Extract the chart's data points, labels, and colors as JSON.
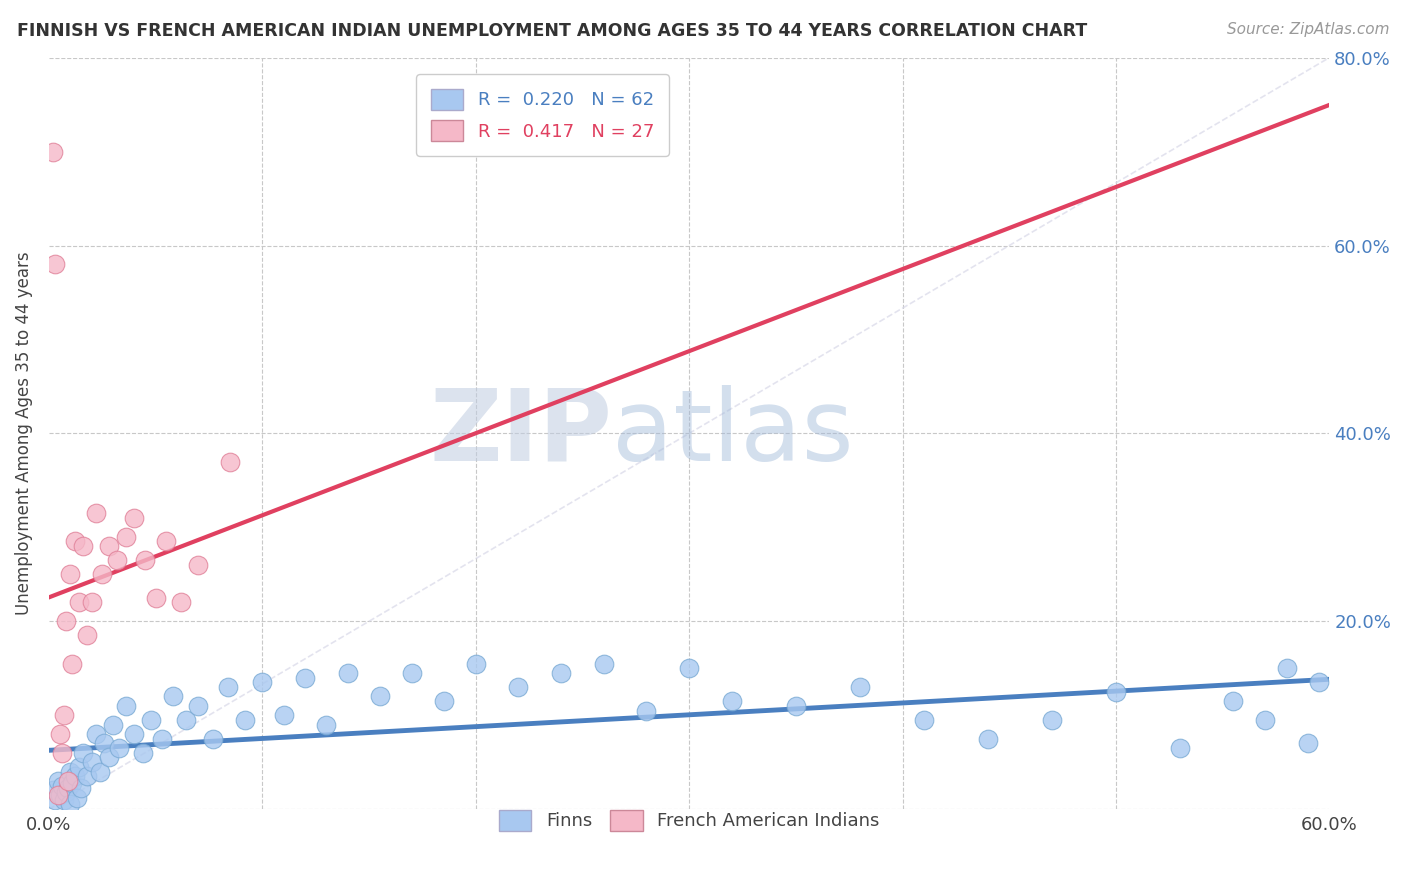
{
  "title": "FINNISH VS FRENCH AMERICAN INDIAN UNEMPLOYMENT AMONG AGES 35 TO 44 YEARS CORRELATION CHART",
  "source": "Source: ZipAtlas.com",
  "ylabel": "Unemployment Among Ages 35 to 44 years",
  "xlim": [
    0.0,
    0.6
  ],
  "ylim": [
    0.0,
    0.8
  ],
  "grid_color": "#c8c8c8",
  "background_color": "#ffffff",
  "finn_color": "#a8c8f0",
  "finn_edge_color": "#7aaad4",
  "french_color": "#f5b8c8",
  "french_edge_color": "#e08098",
  "finn_line_color": "#4a7fc0",
  "french_line_color": "#e04060",
  "finn_reg_dashed_color": "#d0d8f0",
  "french_reg_dashed_color": "#f0c0d0",
  "watermark_zip_color": "#c8d8f0",
  "watermark_atlas_color": "#c0c8e0",
  "legend_R_finn": "0.220",
  "legend_N_finn": "62",
  "legend_R_french": "0.417",
  "legend_N_french": "27",
  "finn_scatter_x": [
    0.002,
    0.003,
    0.004,
    0.005,
    0.006,
    0.007,
    0.008,
    0.009,
    0.01,
    0.01,
    0.011,
    0.012,
    0.013,
    0.014,
    0.015,
    0.016,
    0.018,
    0.02,
    0.022,
    0.024,
    0.026,
    0.028,
    0.03,
    0.033,
    0.036,
    0.04,
    0.044,
    0.048,
    0.053,
    0.058,
    0.064,
    0.07,
    0.077,
    0.084,
    0.092,
    0.1,
    0.11,
    0.12,
    0.13,
    0.14,
    0.155,
    0.17,
    0.185,
    0.2,
    0.22,
    0.24,
    0.26,
    0.28,
    0.3,
    0.32,
    0.35,
    0.38,
    0.41,
    0.44,
    0.47,
    0.5,
    0.53,
    0.555,
    0.57,
    0.58,
    0.59,
    0.595
  ],
  "finn_scatter_y": [
    0.02,
    0.01,
    0.03,
    0.015,
    0.025,
    0.01,
    0.018,
    0.022,
    0.04,
    0.005,
    0.028,
    0.035,
    0.012,
    0.045,
    0.022,
    0.06,
    0.035,
    0.05,
    0.08,
    0.04,
    0.07,
    0.055,
    0.09,
    0.065,
    0.11,
    0.08,
    0.06,
    0.095,
    0.075,
    0.12,
    0.095,
    0.11,
    0.075,
    0.13,
    0.095,
    0.135,
    0.1,
    0.14,
    0.09,
    0.145,
    0.12,
    0.145,
    0.115,
    0.155,
    0.13,
    0.145,
    0.155,
    0.105,
    0.15,
    0.115,
    0.11,
    0.13,
    0.095,
    0.075,
    0.095,
    0.125,
    0.065,
    0.115,
    0.095,
    0.15,
    0.07,
    0.135
  ],
  "french_scatter_x": [
    0.002,
    0.003,
    0.004,
    0.005,
    0.006,
    0.007,
    0.008,
    0.009,
    0.01,
    0.011,
    0.012,
    0.014,
    0.016,
    0.018,
    0.02,
    0.022,
    0.025,
    0.028,
    0.032,
    0.036,
    0.04,
    0.045,
    0.05,
    0.055,
    0.062,
    0.07,
    0.085
  ],
  "french_scatter_y": [
    0.7,
    0.58,
    0.015,
    0.08,
    0.06,
    0.1,
    0.2,
    0.03,
    0.25,
    0.155,
    0.285,
    0.22,
    0.28,
    0.185,
    0.22,
    0.315,
    0.25,
    0.28,
    0.265,
    0.29,
    0.31,
    0.265,
    0.225,
    0.285,
    0.22,
    0.26,
    0.37
  ]
}
